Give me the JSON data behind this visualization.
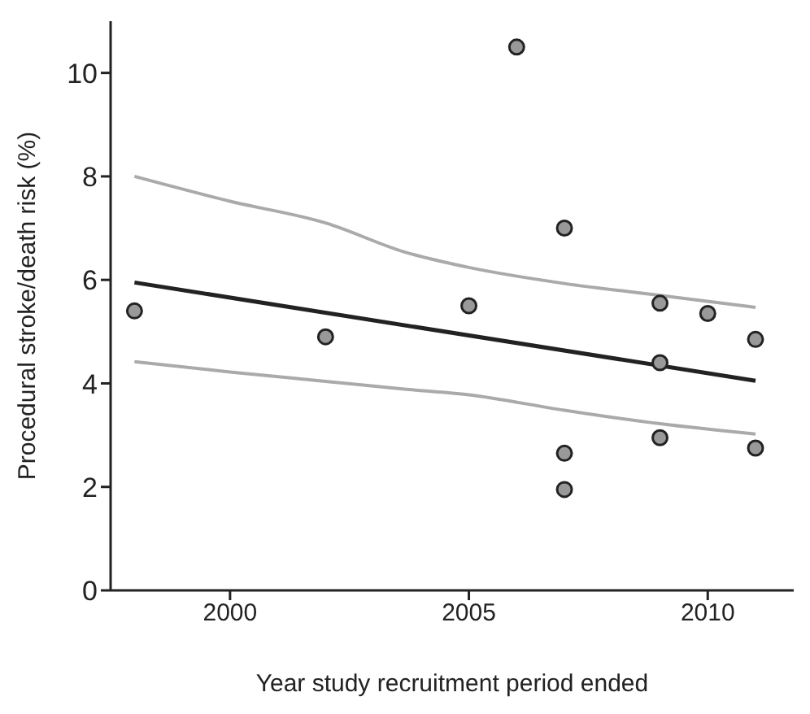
{
  "chart_data": {
    "type": "scatter",
    "xlabel": "Year study recruitment period ended",
    "ylabel": "Procedural stroke/death risk (%)",
    "xlim": [
      1997.5,
      2011.8
    ],
    "xticks": [
      2000,
      2005,
      2010
    ],
    "ylim": [
      0,
      11
    ],
    "yticks": [
      0,
      2,
      4,
      6,
      8,
      10
    ],
    "grid": false,
    "series": [
      {
        "type": "line",
        "color": "#aaaaaa",
        "marker": "none",
        "x": [
          1998,
          2000,
          2002,
          2003.65,
          2005,
          2007,
          2009,
          2011
        ],
        "values": [
          8.0,
          7.52,
          7.1,
          6.54,
          6.24,
          5.93,
          5.7,
          5.47
        ]
      },
      {
        "type": "line",
        "color": "#aaaaaa",
        "marker": "none",
        "x": [
          1998,
          2000,
          2002,
          2003.65,
          2005,
          2007,
          2009,
          2011
        ],
        "values": [
          4.42,
          4.22,
          4.04,
          3.89,
          3.78,
          3.48,
          3.22,
          3.02
        ]
      },
      {
        "type": "line",
        "color": "#222222",
        "marker": "none",
        "x": [
          1998,
          2011
        ],
        "values": [
          5.95,
          4.05
        ]
      },
      {
        "color": "#999999",
        "marker": "circle",
        "x": [
          1998,
          2002,
          2005,
          2006,
          2007,
          2007,
          2007,
          2009,
          2009,
          2009,
          2010,
          2011,
          2011
        ],
        "values": [
          5.4,
          4.9,
          5.5,
          10.5,
          7.0,
          2.65,
          1.95,
          5.55,
          4.4,
          2.95,
          5.35,
          4.85,
          2.75
        ]
      }
    ]
  }
}
